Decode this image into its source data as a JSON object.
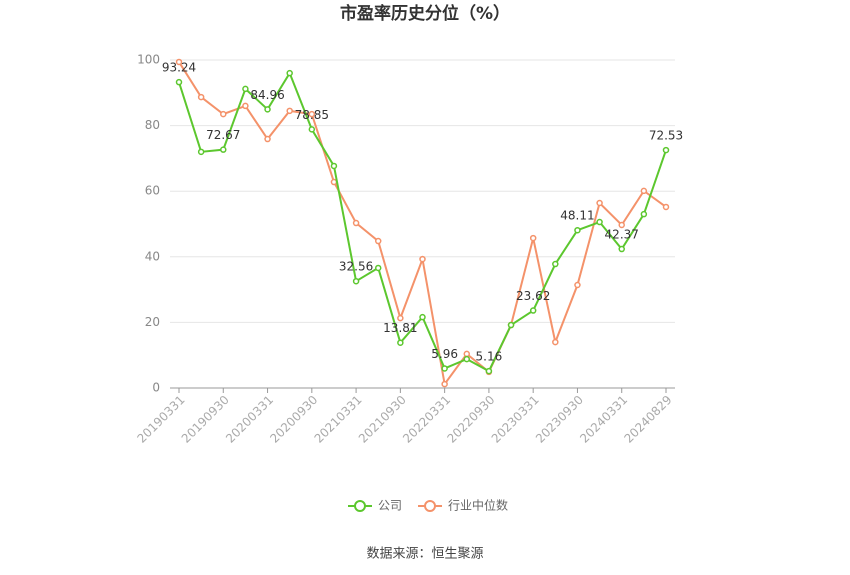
{
  "chart_data": {
    "type": "line",
    "title": "市盈率历史分位（%）",
    "categories": [
      "20190331",
      null,
      "20190930",
      null,
      "20200331",
      null,
      "20200930",
      null,
      "20210331",
      null,
      "20210930",
      null,
      "20220331",
      null,
      "20220930",
      null,
      "20230331",
      null,
      "20230930",
      null,
      "20240331",
      null,
      "20240829"
    ],
    "series": [
      {
        "name": "公司",
        "color": "#5cc72e",
        "values": [
          93.24,
          72.0,
          72.67,
          91.2,
          84.96,
          96.0,
          78.85,
          67.7,
          32.56,
          36.6,
          13.81,
          21.6,
          5.96,
          8.8,
          5.16,
          19.2,
          23.62,
          37.8,
          48.11,
          50.6,
          42.37,
          53.0,
          72.53
        ],
        "value_labels": [
          "93.24",
          null,
          "72.67",
          null,
          "84.96",
          null,
          "78.85",
          null,
          "32.56",
          null,
          "13.81",
          null,
          "5.96",
          null,
          "5.16",
          null,
          "23.62",
          null,
          "48.11",
          null,
          "42.37",
          null,
          "72.53"
        ]
      },
      {
        "name": "行业中位数",
        "color": "#f4926a",
        "values": [
          99.4,
          88.7,
          83.5,
          86.0,
          75.9,
          84.5,
          83.5,
          62.8,
          50.3,
          44.8,
          21.3,
          39.3,
          1.2,
          10.4,
          4.9,
          19.2,
          45.7,
          14.0,
          31.4,
          56.4,
          49.7,
          60.1,
          55.2
        ]
      }
    ],
    "ylim": [
      0,
      100
    ],
    "yticks": [
      0,
      20,
      40,
      60,
      80,
      100
    ],
    "grid": true,
    "legend": "bottom",
    "source": "数据来源：恒生聚源"
  }
}
